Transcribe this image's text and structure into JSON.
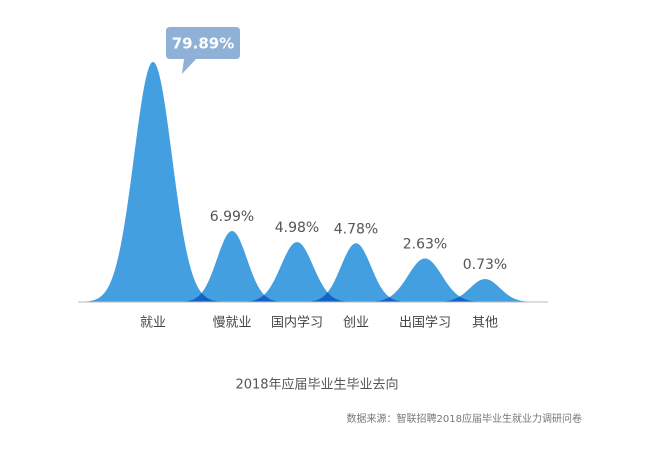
{
  "chart_data": {
    "type": "bell",
    "title": "2018年应届毕业生毕业去向",
    "source": "数据来源：智联招聘2018应届毕业生就业力调研问卷",
    "categories": [
      "就业",
      "慢就业",
      "国内学习",
      "创业",
      "出国学习",
      "其他"
    ],
    "values": [
      79.89,
      6.99,
      4.98,
      4.78,
      2.63,
      0.73
    ],
    "value_labels": [
      "79.89%",
      "6.99%",
      "4.98%",
      "4.78%",
      "2.63%",
      "0.73%"
    ],
    "color": "#2f95dc"
  }
}
